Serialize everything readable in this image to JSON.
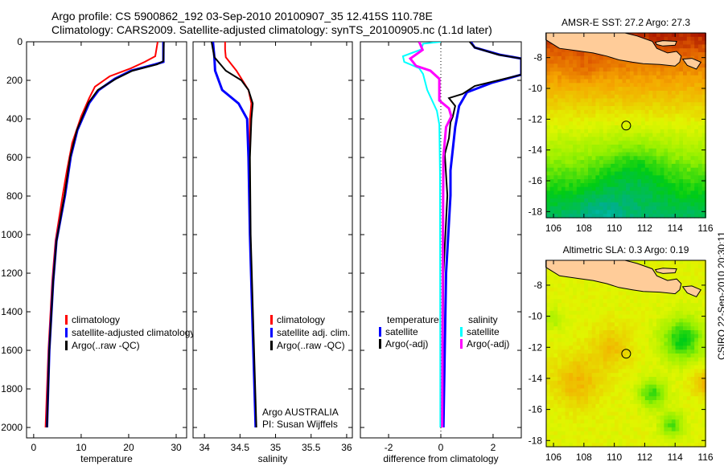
{
  "header": {
    "line1": "Argo profile: CS 5900862_192 03-Sep-2010 20100907_35 12.415S 110.78E",
    "line2": "Climatology: CARS2009. Satellite-adjusted climatology: synTS_20100905.nc (1.1d later)"
  },
  "footer_stamp": "CSIRO 22-Sep-2010 20:30:11",
  "colors": {
    "climatology": "#ff0000",
    "satellite": "#0000ff",
    "argo": "#000000",
    "sal_satellite": "#00ffff",
    "sal_argo": "#ff00ff",
    "land": "#ffcc99"
  },
  "chart_data": [
    {
      "type": "line",
      "xlabel": "temperature",
      "ylabel": "",
      "xlim": [
        -1.5,
        32.2
      ],
      "ylim": [
        2054,
        0
      ],
      "xticks": [
        "0",
        "10",
        "20",
        "30"
      ],
      "xtick_values": [
        0,
        10,
        20,
        30
      ],
      "yticks": [
        "0",
        "200",
        "400",
        "600",
        "800",
        "1000",
        "1200",
        "1400",
        "1600",
        "1800",
        "2000"
      ],
      "ytick_values": [
        0,
        200,
        400,
        600,
        800,
        1000,
        1200,
        1400,
        1600,
        1800,
        2000
      ],
      "legend": [
        "climatology",
        "satellite-adjusted climatology",
        "Argo(..raw -QC)"
      ],
      "series": [
        {
          "name": "climatology",
          "color": "#ff0000",
          "depth": [
            0,
            75,
            104,
            137,
            179,
            233,
            292,
            387,
            525,
            667,
            796,
            1033,
            1242,
            1600,
            2000
          ],
          "values": [
            26.1,
            25.6,
            23.4,
            20.5,
            16,
            12.9,
            11.7,
            10,
            8.1,
            7,
            6.1,
            4.6,
            3.9,
            3.1,
            2.5
          ]
        },
        {
          "name": "satellite-adjusted climatology",
          "color": "#0000ff",
          "depth": [
            0,
            104,
            117,
            150,
            192,
            250,
            317,
            458,
            596,
            796,
            1033,
            1242,
            1600,
            2000
          ],
          "values": [
            27.3,
            27.3,
            25.6,
            20.5,
            17.1,
            13.7,
            11.7,
            9.2,
            7.8,
            6.6,
            4.8,
            4.1,
            3.3,
            2.8
          ]
        },
        {
          "name": "Argo(..raw -QC)",
          "color": "#000000",
          "depth": [
            0,
            100,
            117,
            150,
            192,
            250,
            317,
            458,
            596,
            796,
            1033,
            1242,
            1600,
            2000
          ],
          "values": [
            27.4,
            27.3,
            26,
            20.8,
            17.3,
            13.5,
            11.5,
            9.1,
            7.7,
            6.5,
            4.8,
            4.1,
            3.3,
            2.8
          ]
        }
      ]
    },
    {
      "type": "line",
      "xlabel": "salinity",
      "xlim": [
        33.84,
        36.08
      ],
      "ylim": [
        2054,
        0
      ],
      "xticks": [
        "34",
        "34.5",
        "35",
        "35.5",
        "36"
      ],
      "xtick_values": [
        34,
        34.5,
        35,
        35.5,
        36
      ],
      "legend": [
        "climatology",
        "satellite adj. clim.",
        "Argo(..raw -QC)"
      ],
      "annotation": [
        "Argo AUSTRALIA",
        "PI: Susan Wijffels"
      ],
      "series": [
        {
          "name": "climatology",
          "color": "#ff0000",
          "depth": [
            0,
            40,
            80,
            150,
            250,
            320,
            400,
            600,
            1000,
            1500,
            2000
          ],
          "values": [
            34.29,
            34.29,
            34.3,
            34.45,
            34.62,
            34.66,
            34.64,
            34.63,
            34.64,
            34.68,
            34.72
          ]
        },
        {
          "name": "satellite adj. clim.",
          "color": "#0000ff",
          "depth": [
            0,
            40,
            80,
            150,
            250,
            320,
            400,
            600,
            1000,
            1500,
            2000
          ],
          "values": [
            34.12,
            34.13,
            34.14,
            34.15,
            34.25,
            34.48,
            34.6,
            34.62,
            34.64,
            34.68,
            34.72
          ]
        },
        {
          "name": "Argo(..raw -QC)",
          "color": "#000000",
          "depth": [
            0,
            40,
            80,
            150,
            200,
            250,
            320,
            400,
            600,
            1000,
            1500,
            2000
          ],
          "values": [
            34.1,
            34.12,
            34.14,
            34.3,
            34.52,
            34.62,
            34.68,
            34.66,
            34.64,
            34.65,
            34.69,
            34.73
          ]
        }
      ]
    },
    {
      "type": "line",
      "xlabel": "difference from climatology",
      "xlim": [
        -3.08,
        3.08
      ],
      "ylim": [
        2054,
        0
      ],
      "xticks": [
        "-2",
        "0",
        "2"
      ],
      "xtick_values": [
        -2,
        0,
        2
      ],
      "legend_temperature_title": "temperature",
      "legend_salinity_title": "salinity",
      "legend": [
        "satellite",
        "Argo(-adj)",
        "satellite",
        "Argo(-adj)"
      ],
      "series": [
        {
          "name": "temperature satellite",
          "color": "#0000ff",
          "depth": [
            0,
            30,
            67,
            87,
            120,
            171,
            213,
            262,
            333,
            442,
            667,
            796,
            1200,
            2000
          ],
          "values": [
            1.14,
            1.3,
            2.25,
            3.08,
            3.08,
            3.08,
            1.95,
            1.0,
            0.7,
            0.55,
            0.37,
            0.37,
            0.2,
            0.1
          ]
        },
        {
          "name": "temperature Argo(-adj)",
          "color": "#000000",
          "depth": [
            0,
            30,
            67,
            87,
            120,
            171,
            229,
            271,
            292,
            333,
            387,
            417,
            500,
            583,
            796,
            1200,
            2000
          ],
          "values": [
            1.1,
            1.3,
            2.2,
            3.08,
            3.08,
            3.08,
            1.3,
            0.83,
            0.31,
            0.55,
            0.46,
            0.37,
            0.31,
            0.15,
            0.25,
            0.1,
            0.05
          ]
        },
        {
          "name": "salinity satellite",
          "color": "#00ffff",
          "depth": [
            0,
            10,
            40,
            75,
            104,
            137,
            167,
            250,
            358,
            429,
            700,
            2000
          ],
          "values": [
            0,
            -0.68,
            -0.75,
            -1.45,
            -1.4,
            -0.83,
            -0.68,
            -0.52,
            -0.15,
            -0.06,
            -0.03,
            -0.02
          ]
        },
        {
          "name": "salinity Argo(-adj)",
          "color": "#ff00ff",
          "depth": [
            0,
            42,
            87,
            125,
            150,
            192,
            304,
            346,
            387,
            442,
            596,
            1000,
            2000
          ],
          "values": [
            -0.83,
            -0.7,
            -1.17,
            -0.95,
            -0.4,
            -0.06,
            -0.06,
            0.31,
            0.4,
            0.2,
            0.1,
            0.08,
            0.05
          ]
        }
      ]
    },
    {
      "type": "heatmap",
      "title": "AMSR-E SST: 27.2 Argo: 27.3",
      "xlim": [
        105.52,
        116
      ],
      "ylim": [
        -18.4,
        -6.4
      ],
      "xticks": [
        "106",
        "108",
        "110",
        "112",
        "114",
        "116"
      ],
      "xtick_values": [
        106,
        108,
        110,
        112,
        114,
        116
      ],
      "yticks": [
        "-8",
        "-10",
        "-12",
        "-14",
        "-16",
        "-18"
      ],
      "ytick_values": [
        -8,
        -10,
        -12,
        -14,
        -16,
        -18
      ],
      "satellite_value": 27.2,
      "argo_value": 27.3,
      "profile_location": {
        "lon": 110.78,
        "lat": -12.415
      }
    },
    {
      "type": "heatmap",
      "title": "Altimetric SLA: 0.3 Argo: 0.19",
      "xlim": [
        105.52,
        116
      ],
      "ylim": [
        -18.4,
        -6.4
      ],
      "xticks": [
        "106",
        "108",
        "110",
        "112",
        "114",
        "116"
      ],
      "xtick_values": [
        106,
        108,
        110,
        112,
        114,
        116
      ],
      "yticks": [
        "-8",
        "-10",
        "-12",
        "-14",
        "-16",
        "-18"
      ],
      "ytick_values": [
        -8,
        -10,
        -12,
        -14,
        -16,
        -18
      ],
      "satellite_value": 0.3,
      "argo_value": 0.19,
      "profile_location": {
        "lon": 110.78,
        "lat": -12.415
      }
    }
  ]
}
